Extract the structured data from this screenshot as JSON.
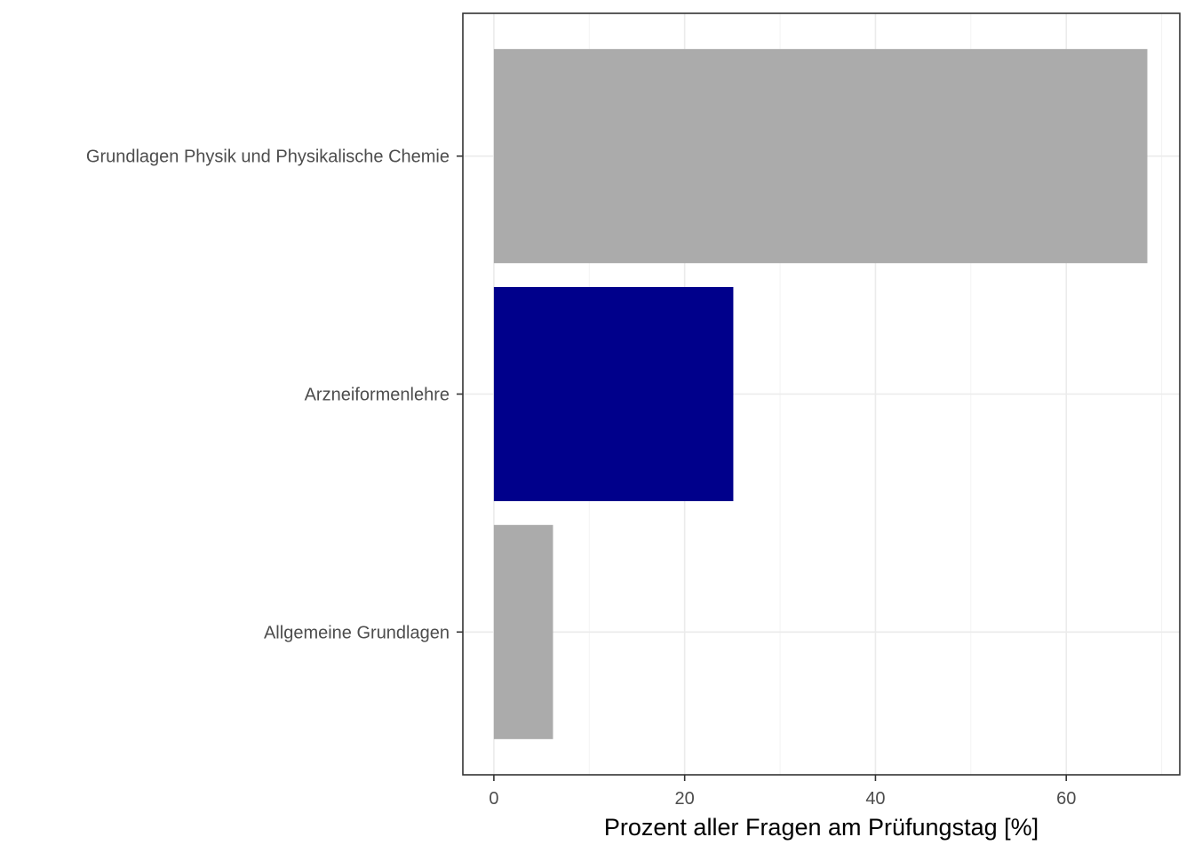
{
  "chart_data": {
    "type": "bar",
    "orientation": "horizontal",
    "categories": [
      "Grundlagen Physik und Physikalische Chemie",
      "Arzneiformenlehre",
      "Allgemeine Grundlagen"
    ],
    "values": [
      68.5,
      25.1,
      6.2
    ],
    "bar_colors": [
      "#ababab",
      "#00008b",
      "#ababab"
    ],
    "xlabel": "Prozent aller Fragen am Prüfungstag [%]",
    "ylabel": "",
    "title": "",
    "xlim": [
      -3.25,
      71.9
    ],
    "xticks": [
      0,
      20,
      40,
      60
    ],
    "xtick_labels": [
      "0",
      "20",
      "40",
      "60"
    ],
    "grid": true,
    "legend": "none"
  }
}
